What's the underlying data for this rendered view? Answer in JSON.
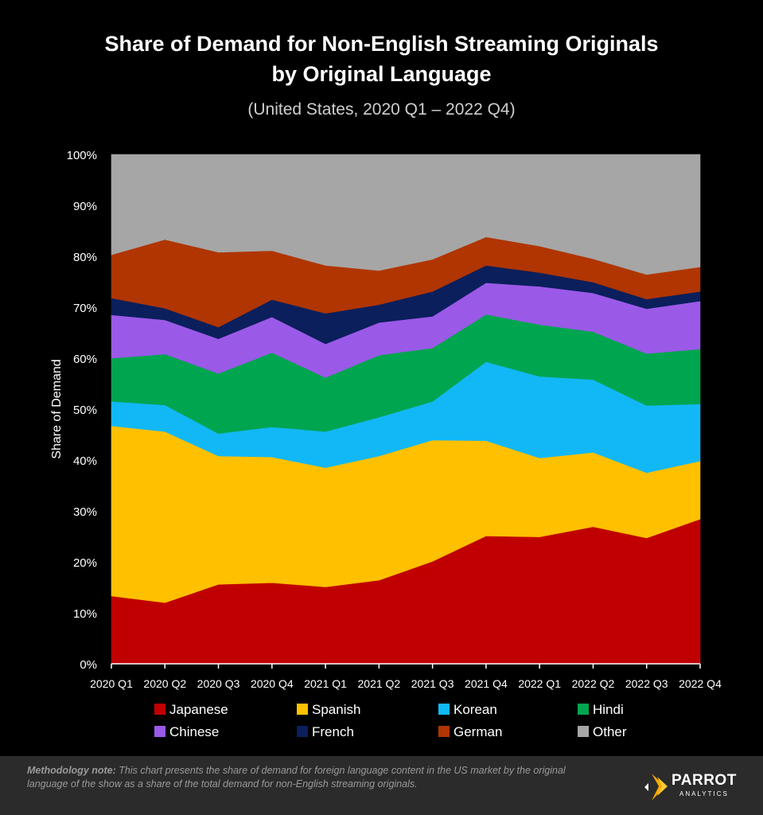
{
  "title_line1": "Share of Demand for Non-English Streaming Originals",
  "title_line2": "by Original Language",
  "subtitle": "(United States, 2020 Q1 – 2022 Q4)",
  "footer": {
    "note_label": "Methodology note:",
    "note_text": " This chart presents the share of demand for foreign language content in the US market by the original language of the show as a share of the total demand for non-English streaming originals.",
    "brand_name": "PARROT",
    "brand_sub": "ANALYTICS"
  },
  "chart_data": {
    "type": "area",
    "stacked": true,
    "title": "Share of Demand for Non-English Streaming Originals by Original Language",
    "xlabel": "",
    "ylabel": "Share of Demand",
    "ylim": [
      0,
      100
    ],
    "yticks": [
      "0%",
      "10%",
      "20%",
      "30%",
      "40%",
      "50%",
      "60%",
      "70%",
      "80%",
      "90%",
      "100%"
    ],
    "categories": [
      "2020 Q1",
      "2020 Q2",
      "2020 Q3",
      "2020 Q4",
      "2021 Q1",
      "2021 Q2",
      "2021 Q3",
      "2021 Q4",
      "2022 Q1",
      "2022 Q2",
      "2022 Q3",
      "2022 Q4"
    ],
    "legend_position": "bottom",
    "series": [
      {
        "name": "Japanese",
        "color": "#c00000",
        "values": [
          13.3,
          12.0,
          15.6,
          15.9,
          15.1,
          16.4,
          20.1,
          25.1,
          24.9,
          26.9,
          24.7,
          28.4
        ]
      },
      {
        "name": "Spanish",
        "color": "#ffc000",
        "values": [
          33.4,
          33.6,
          25.2,
          24.7,
          23.4,
          24.4,
          23.8,
          18.7,
          15.5,
          14.6,
          12.8,
          11.4
        ]
      },
      {
        "name": "Korean",
        "color": "#12b8f5",
        "values": [
          4.8,
          5.2,
          4.4,
          5.9,
          7.1,
          7.6,
          7.6,
          15.5,
          16.0,
          14.3,
          13.2,
          11.2
        ]
      },
      {
        "name": "Hindi",
        "color": "#00a550",
        "values": [
          8.5,
          10.0,
          11.8,
          14.6,
          10.6,
          12.2,
          10.5,
          9.3,
          10.2,
          9.4,
          10.2,
          10.8
        ]
      },
      {
        "name": "Chinese",
        "color": "#9b59e8",
        "values": [
          8.5,
          6.7,
          6.8,
          7.0,
          6.6,
          6.4,
          6.2,
          6.2,
          7.5,
          7.6,
          8.8,
          9.4
        ]
      },
      {
        "name": "French",
        "color": "#0a1f5c",
        "values": [
          3.3,
          2.3,
          2.3,
          3.4,
          6.0,
          3.5,
          4.9,
          3.4,
          2.7,
          2.1,
          1.9,
          1.9
        ]
      },
      {
        "name": "German",
        "color": "#b03500",
        "values": [
          8.5,
          13.5,
          14.7,
          9.6,
          9.4,
          6.7,
          6.3,
          5.6,
          5.2,
          4.6,
          4.8,
          4.8
        ]
      },
      {
        "name": "Other",
        "color": "#a6a6a6",
        "values": [
          19.7,
          16.7,
          19.2,
          18.9,
          21.8,
          22.8,
          20.6,
          16.2,
          18.0,
          20.5,
          23.6,
          22.1
        ]
      }
    ]
  }
}
